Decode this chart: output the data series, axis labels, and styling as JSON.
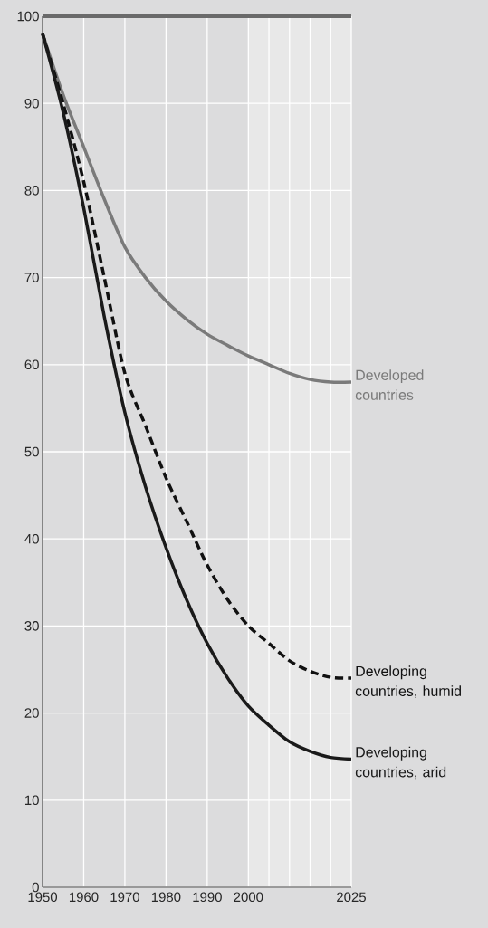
{
  "chart_data": {
    "type": "line",
    "x": [
      1950,
      1955,
      1960,
      1965,
      1970,
      1975,
      1980,
      1985,
      1990,
      1995,
      2000,
      2005,
      2010,
      2015,
      2020,
      2025
    ],
    "series": [
      {
        "name": "Developed countries",
        "color": "#7a7a7a",
        "line_style": "solid",
        "values": [
          98,
          91,
          85,
          79,
          73.5,
          70,
          67.3,
          65.2,
          63.5,
          62.2,
          61,
          60,
          59,
          58.3,
          58,
          58
        ]
      },
      {
        "name": "Developing countries, humid",
        "color": "#111111",
        "line_style": "dashed",
        "values": [
          98,
          90,
          81,
          70,
          59,
          53,
          47,
          42,
          37,
          33,
          30,
          28,
          26,
          24.8,
          24.1,
          24
        ]
      },
      {
        "name": "Developing countries, arid",
        "color": "#1a1a1a",
        "line_style": "solid",
        "values": [
          98,
          89,
          78,
          65.5,
          54.5,
          46,
          39,
          33,
          28,
          24,
          20.8,
          18.6,
          16.7,
          15.6,
          14.9,
          14.7
        ]
      }
    ],
    "xlim": [
      1950,
      2025
    ],
    "ylim": [
      0,
      100
    ],
    "xticks": [
      1950,
      1960,
      1970,
      1980,
      1990,
      2000,
      {
        "value": 2005,
        "label": null
      },
      {
        "value": 2010,
        "label": null
      },
      {
        "value": 2015,
        "label": null
      },
      {
        "value": 2020,
        "label": null
      },
      2025
    ],
    "yticks": [
      0,
      10,
      20,
      30,
      40,
      50,
      60,
      70,
      80,
      90,
      100
    ],
    "grid": true,
    "marker": "none",
    "ref_lines": [
      {
        "axis": "y",
        "value": 100,
        "color": "#6a6a6a"
      }
    ],
    "bands": [
      {
        "axis": "x",
        "from": 2000,
        "to": 2025,
        "color": "#e8e8e8"
      }
    ]
  }
}
